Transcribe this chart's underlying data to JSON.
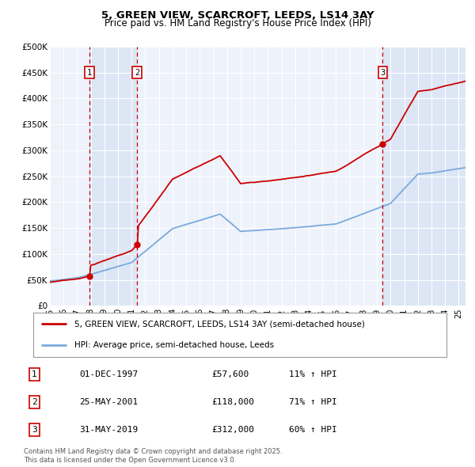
{
  "title_line1": "5, GREEN VIEW, SCARCROFT, LEEDS, LS14 3AY",
  "title_line2": "Price paid vs. HM Land Registry's House Price Index (HPI)",
  "ylim": [
    0,
    500000
  ],
  "yticks": [
    0,
    50000,
    100000,
    150000,
    200000,
    250000,
    300000,
    350000,
    400000,
    450000,
    500000
  ],
  "ytick_labels": [
    "£0",
    "£50K",
    "£100K",
    "£150K",
    "£200K",
    "£250K",
    "£300K",
    "£350K",
    "£400K",
    "£450K",
    "£500K"
  ],
  "sale_t": [
    1997.917,
    2001.4,
    2019.417
  ],
  "sale_p": [
    57600,
    118000,
    312000
  ],
  "sale_labels": [
    "1",
    "2",
    "3"
  ],
  "sale_annotations": [
    {
      "label": "1",
      "date": "01-DEC-1997",
      "price": "£57,600",
      "hpi": "11% ↑ HPI"
    },
    {
      "label": "2",
      "date": "25-MAY-2001",
      "price": "£118,000",
      "hpi": "71% ↑ HPI"
    },
    {
      "label": "3",
      "date": "31-MAY-2019",
      "price": "£312,000",
      "hpi": "60% ↑ HPI"
    }
  ],
  "line_color_red": "#cc0000",
  "line_color_blue": "#7aaadd",
  "shade_color": "#dce6f5",
  "vline_color": "#cc0000",
  "legend_label_red": "5, GREEN VIEW, SCARCROFT, LEEDS, LS14 3AY (semi-detached house)",
  "legend_label_blue": "HPI: Average price, semi-detached house, Leeds",
  "footnote": "Contains HM Land Registry data © Crown copyright and database right 2025.\nThis data is licensed under the Open Government Licence v3.0.",
  "plot_bg_color": "#eef2fb",
  "grid_color": "#ffffff",
  "xlim_start": 1995.0,
  "xlim_end": 2025.5
}
